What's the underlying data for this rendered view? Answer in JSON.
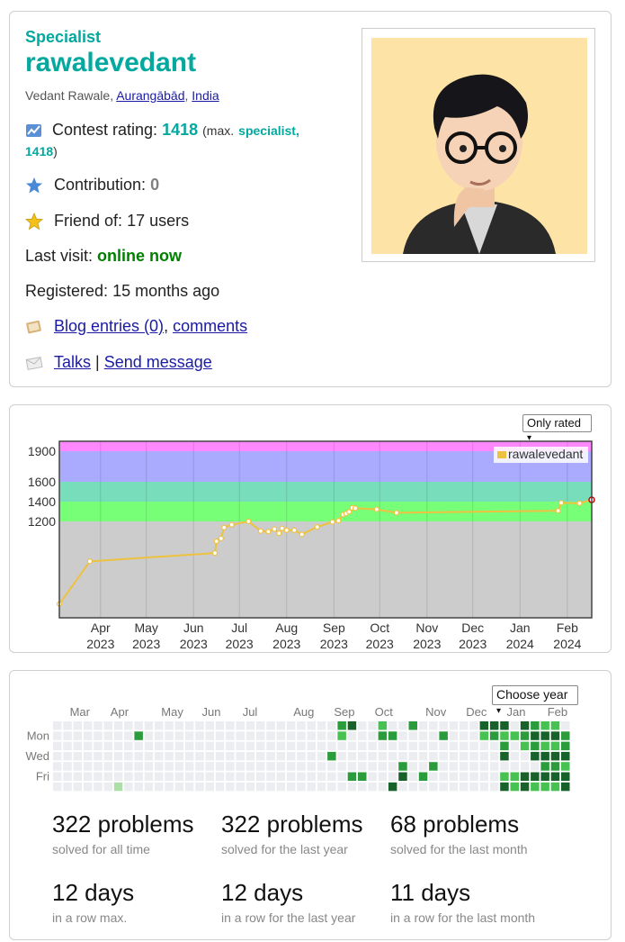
{
  "profile": {
    "rank": "Specialist",
    "handle": "rawalevedant",
    "name": "Vedant Rawale",
    "city": "Aurangābād",
    "country": "India",
    "rating_label": "Contest rating:",
    "rating": "1418",
    "max_prefix": "(max.",
    "max_rank": "specialist,",
    "max_rating": "1418",
    "max_suffix": ")",
    "contribution_label": "Contribution:",
    "contribution": "0",
    "friend_label": "Friend of:",
    "friend_value": "17 users",
    "visit_label": "Last visit:",
    "visit_value": "online now",
    "registered_label": "Registered:",
    "registered_value": "15 months ago",
    "blog_link": "Blog entries (0)",
    "comments_link": "comments",
    "talks_link": "Talks",
    "separator": "|",
    "send_link": "Send message"
  },
  "colors": {
    "accent": "#03a89e",
    "link": "#1a1aa6",
    "online": "#008000",
    "line": "#edc240"
  },
  "rating_graph": {
    "filter_label": "Only rated",
    "legend": "rawalevedant"
  },
  "chart_data": {
    "type": "line",
    "series": [
      {
        "name": "rawalevedant",
        "x": [
          "2023-03-05",
          "2023-03-25",
          "2023-06-15",
          "2023-06-16",
          "2023-06-19",
          "2023-06-21",
          "2023-06-26",
          "2023-07-07",
          "2023-07-15",
          "2023-07-20",
          "2023-07-24",
          "2023-07-27",
          "2023-07-29",
          "2023-08-01",
          "2023-08-06",
          "2023-08-11",
          "2023-08-21",
          "2023-08-31",
          "2023-09-04",
          "2023-09-07",
          "2023-09-09",
          "2023-09-11",
          "2023-09-13",
          "2023-09-15",
          "2023-09-29",
          "2023-10-12",
          "2024-01-26",
          "2024-01-28",
          "2024-02-09",
          "2024-02-17"
        ],
        "y": [
          900,
          1055,
          1085,
          1128,
          1138,
          1178,
          1188,
          1200,
          1165,
          1163,
          1172,
          1157,
          1175,
          1168,
          1168,
          1153,
          1180,
          1198,
          1208,
          1270,
          1280,
          1298,
          1338,
          1333,
          1322,
          1288,
          1308,
          1388,
          1383,
          1418
        ]
      }
    ],
    "xlabel": "",
    "ylabel": "",
    "x_ticks": [
      {
        "month": "Apr",
        "year": "2023",
        "date": "2023-04-01"
      },
      {
        "month": "May",
        "year": "2023",
        "date": "2023-05-01"
      },
      {
        "month": "Jun",
        "year": "2023",
        "date": "2023-06-01"
      },
      {
        "month": "Jul",
        "year": "2023",
        "date": "2023-07-01"
      },
      {
        "month": "Aug",
        "year": "2023",
        "date": "2023-08-01"
      },
      {
        "month": "Sep",
        "year": "2023",
        "date": "2023-09-01"
      },
      {
        "month": "Oct",
        "year": "2023",
        "date": "2023-10-01"
      },
      {
        "month": "Nov",
        "year": "2023",
        "date": "2023-11-01"
      },
      {
        "month": "Dec",
        "year": "2023",
        "date": "2023-12-01"
      },
      {
        "month": "Jan",
        "year": "2024",
        "date": "2024-01-01"
      },
      {
        "month": "Feb",
        "year": "2024",
        "date": "2024-02-01"
      }
    ],
    "y_ticks": [
      "1200",
      "1400",
      "1600",
      "1900"
    ],
    "xlim": [
      "2023-03-05",
      "2024-02-17"
    ],
    "rank_bands": [
      {
        "from": 0,
        "to": 1200,
        "color": "#cccccc"
      },
      {
        "from": 1200,
        "to": 1400,
        "color": "#77ff77"
      },
      {
        "from": 1400,
        "to": 1600,
        "color": "#77ddbb"
      },
      {
        "from": 1600,
        "to": 1900,
        "color": "#aaaaff"
      },
      {
        "from": 1900,
        "to": 2100,
        "color": "#ff88ff"
      }
    ],
    "grid": true,
    "legend_position": "top-right"
  },
  "activity": {
    "year_select": "Choose year",
    "months": [
      "Mar",
      "Apr",
      "May",
      "Jun",
      "Jul",
      "Aug",
      "Sep",
      "Oct",
      "Nov",
      "Dec",
      "Jan",
      "Feb"
    ],
    "day_labels": [
      "Mon",
      "Wed",
      "Fri"
    ],
    "level_colors": [
      "#ebedf0",
      "#acdfa7",
      "#47c151",
      "#2a9c3c",
      "#19612a"
    ],
    "week_levels": [
      "0000000",
      "0000000",
      "0000000",
      "0000000",
      "0000000",
      "0000000",
      "0000001",
      "0000000",
      "0300000",
      "0000000",
      "0000000",
      "0000000",
      "0000000",
      "0000000",
      "0000000",
      "0000000",
      "0000000",
      "0000000",
      "0000000",
      "0000000",
      "0000000",
      "0000000",
      "0000000",
      "0000000",
      "0000000",
      "0000000",
      "0000000",
      "0003000",
      "3200000",
      "4000030",
      "0000030",
      "0000000",
      "2300000",
      "0300004",
      "0000340",
      "3000000",
      "0000030",
      "0000300",
      "0300000",
      "0000000",
      "0000000",
      "0000000",
      "4200000",
      "4300000",
      "4234024",
      "0200022",
      "4320044",
      "3434042",
      "2424342",
      "2424342",
      "0334244",
      "3300000",
      "4300000",
      "2000000",
      "0000000",
      "0000000",
      "0000000",
      "0000000",
      "0000000",
      "0000000",
      "0000000",
      "0000000",
      "0000000",
      "0000000",
      "0000000",
      "0000000",
      "0000000",
      "0000000",
      "0000000",
      "0000000",
      "0000000",
      "0000000",
      "0000000",
      "0000000",
      "0000000",
      "0000000",
      "0000000",
      "0000000",
      "0000000",
      "0000000",
      "0000000",
      "0000000",
      "0000000",
      "0000000",
      "0000000",
      "0000000",
      "0000000",
      "0000000",
      "0000000",
      "0000000",
      "0000000",
      "0000000",
      "0000000",
      "0000000",
      "0000000",
      "0000000",
      "0000000",
      "0000000",
      "0000000",
      "0000000",
      "0000000",
      "0000000",
      "0000000",
      "0000000",
      "0000000",
      "0000000",
      "0000000",
      "0000000",
      "0000000",
      "0000000",
      "0000000",
      "0000000",
      "0000000",
      "0000000",
      "0000000",
      "0000000",
      "0000000",
      "0000000",
      "0000000",
      "0000000",
      "0000000",
      "0000000",
      "0000000",
      "0000000",
      "0000000",
      "0000000",
      "0000000",
      "0000000",
      "0000000",
      "0000000",
      "0000000",
      "0000000",
      "0000000",
      "0000000",
      "0000000",
      "0000000",
      "0000000",
      "0000000",
      "0000000",
      "0000000",
      "0000000",
      "0000000",
      "0000000",
      "0000000",
      "0000000",
      "0000000",
      "0000000",
      "0000000",
      "0000000",
      "0000000",
      "0000000",
      "0000000",
      "0000000",
      "0000000",
      "0000000",
      "0000000",
      "0000000",
      "0000000",
      "0000000",
      "0000000",
      "0000000"
    ],
    "stats": [
      {
        "value": "322 problems",
        "label": "solved for all time"
      },
      {
        "value": "322 problems",
        "label": "solved for the last year"
      },
      {
        "value": "68 problems",
        "label": "solved for the last month"
      },
      {
        "value": "12 days",
        "label": "in a row max."
      },
      {
        "value": "12 days",
        "label": "in a row for the last year"
      },
      {
        "value": "11 days",
        "label": "in a row for the last month"
      }
    ]
  }
}
